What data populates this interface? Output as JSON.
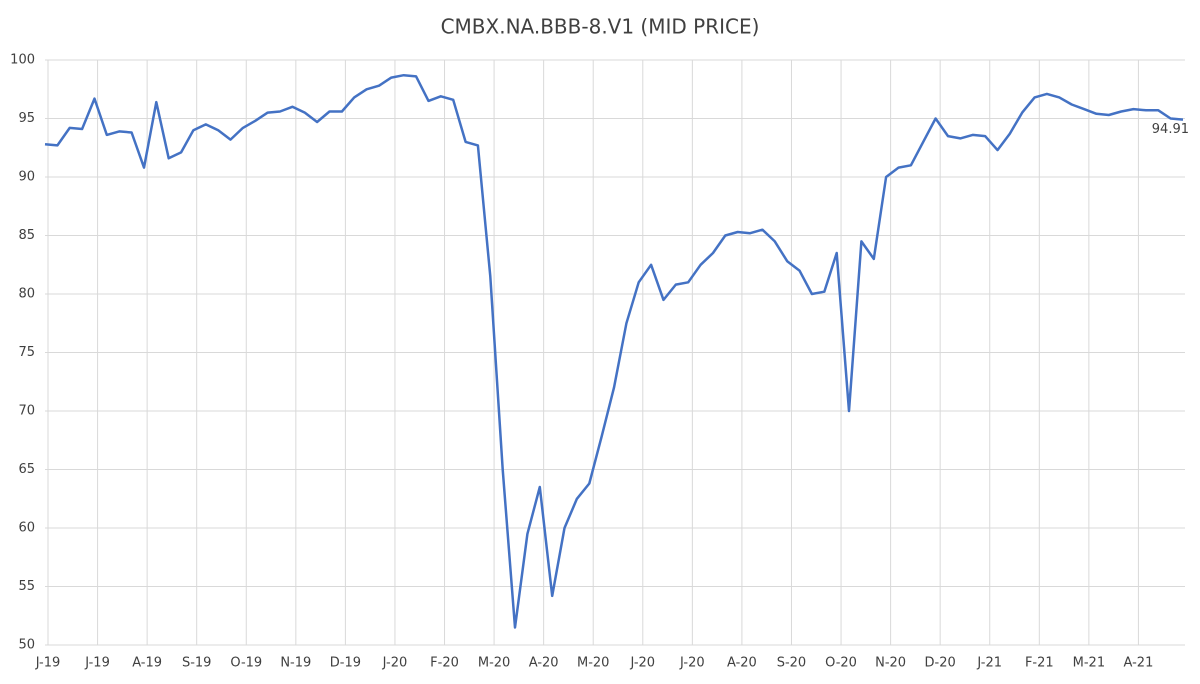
{
  "chart_data": {
    "type": "line",
    "title": "CMBX.NA.BBB-8.V1  (MID PRICE)",
    "xticks": [
      "J-19",
      "J-19",
      "A-19",
      "S-19",
      "O-19",
      "N-19",
      "D-19",
      "J-20",
      "F-20",
      "M-20",
      "A-20",
      "M-20",
      "J-20",
      "J-20",
      "A-20",
      "S-20",
      "O-20",
      "N-20",
      "D-20",
      "J-21",
      "F-21",
      "M-21",
      "A-21"
    ],
    "color": "#4472c4",
    "values": [
      92.8,
      92.7,
      94.2,
      94.1,
      96.7,
      93.6,
      93.9,
      93.8,
      90.8,
      96.4,
      91.6,
      92.1,
      94.0,
      94.5,
      94.0,
      93.2,
      94.2,
      94.8,
      95.5,
      95.6,
      96.0,
      95.5,
      94.7,
      95.6,
      95.6,
      96.8,
      97.5,
      97.8,
      98.5,
      98.7,
      98.6,
      96.5,
      96.9,
      96.6,
      93.0,
      92.7,
      81.5,
      65.0,
      51.5,
      59.5,
      63.5,
      54.2,
      60.0,
      62.5,
      63.8,
      67.8,
      72.0,
      77.5,
      81.0,
      82.5,
      79.5,
      80.8,
      81.0,
      82.5,
      83.5,
      85.0,
      85.3,
      85.2,
      85.5,
      84.5,
      82.8,
      82.0,
      80.0,
      80.2,
      83.5,
      70.0,
      84.5,
      83.0,
      90.0,
      90.8,
      91.0,
      93.0,
      95.0,
      93.5,
      93.3,
      93.6,
      93.5,
      92.3,
      93.7,
      95.5,
      96.8,
      97.1,
      96.8,
      96.2,
      95.8,
      95.4,
      95.3,
      95.6,
      95.8,
      95.7,
      95.7,
      95.0,
      94.91
    ],
    "ylim": [
      50,
      100
    ],
    "yticks": [
      50,
      55,
      60,
      65,
      70,
      75,
      80,
      85,
      90,
      95,
      100
    ],
    "grid": true
  }
}
